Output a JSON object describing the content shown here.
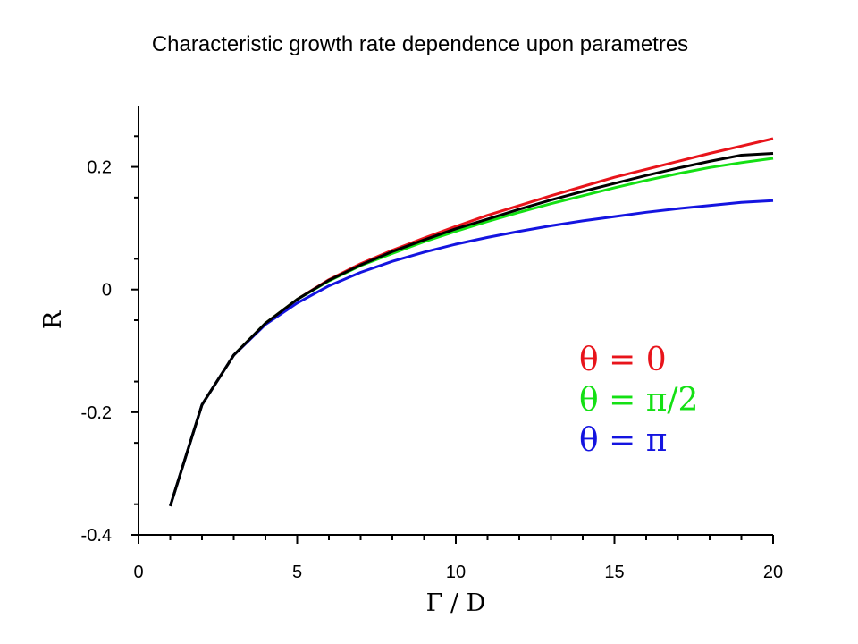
{
  "chart_data": {
    "type": "line",
    "title": "Characteristic growth rate dependence upon parametres",
    "xlabel": "Γ / D",
    "ylabel": "R",
    "xlim": [
      0,
      20
    ],
    "ylim": [
      -0.4,
      0.3
    ],
    "x_ticks": [
      0,
      5,
      10,
      15,
      20
    ],
    "x_tick_labels": [
      "0",
      "5",
      "10",
      "15",
      "20"
    ],
    "y_ticks": [
      -0.4,
      -0.2,
      0,
      0.2
    ],
    "y_tick_labels": [
      "-0.4",
      "-0.2",
      "0",
      "0.2"
    ],
    "grid": false,
    "legend_position": "center-right",
    "series": [
      {
        "name": "θ = 0",
        "color": "#e8141b",
        "x": [
          1,
          2,
          3,
          4,
          5,
          6,
          7,
          8,
          9,
          10,
          11,
          12,
          13,
          14,
          15,
          16,
          17,
          18,
          19,
          20
        ],
        "values": [
          -0.353,
          -0.188,
          -0.107,
          -0.055,
          -0.016,
          0.016,
          0.042,
          0.064,
          0.084,
          0.103,
          0.121,
          0.137,
          0.153,
          0.168,
          0.183,
          0.196,
          0.209,
          0.222,
          0.234,
          0.246
        ]
      },
      {
        "name": "θ = π/2",
        "color": "#14e014",
        "x": [
          1,
          2,
          3,
          4,
          5,
          6,
          7,
          8,
          9,
          10,
          11,
          12,
          13,
          14,
          15,
          16,
          17,
          18,
          19,
          20
        ],
        "values": [
          -0.353,
          -0.188,
          -0.107,
          -0.055,
          -0.016,
          0.014,
          0.039,
          0.059,
          0.078,
          0.095,
          0.111,
          0.126,
          0.14,
          0.153,
          0.166,
          0.178,
          0.189,
          0.199,
          0.207,
          0.214
        ]
      },
      {
        "name": "θ = π",
        "color": "#1414e0",
        "x": [
          1,
          2,
          3,
          4,
          5,
          6,
          7,
          8,
          9,
          10,
          11,
          12,
          13,
          14,
          15,
          16,
          17,
          18,
          19,
          20
        ],
        "values": [
          -0.353,
          -0.188,
          -0.107,
          -0.057,
          -0.022,
          0.006,
          0.028,
          0.046,
          0.061,
          0.074,
          0.085,
          0.095,
          0.104,
          0.112,
          0.119,
          0.126,
          0.132,
          0.137,
          0.142,
          0.145
        ]
      },
      {
        "color": "#000000",
        "x": [
          1,
          2,
          3,
          4,
          5,
          6,
          7,
          8,
          9,
          10,
          11,
          12,
          13,
          14,
          15,
          16,
          17,
          18,
          19,
          20
        ],
        "values": [
          -0.353,
          -0.188,
          -0.107,
          -0.055,
          -0.016,
          0.015,
          0.04,
          0.062,
          0.081,
          0.099,
          0.115,
          0.131,
          0.146,
          0.16,
          0.173,
          0.186,
          0.198,
          0.209,
          0.219,
          0.222
        ]
      }
    ]
  }
}
